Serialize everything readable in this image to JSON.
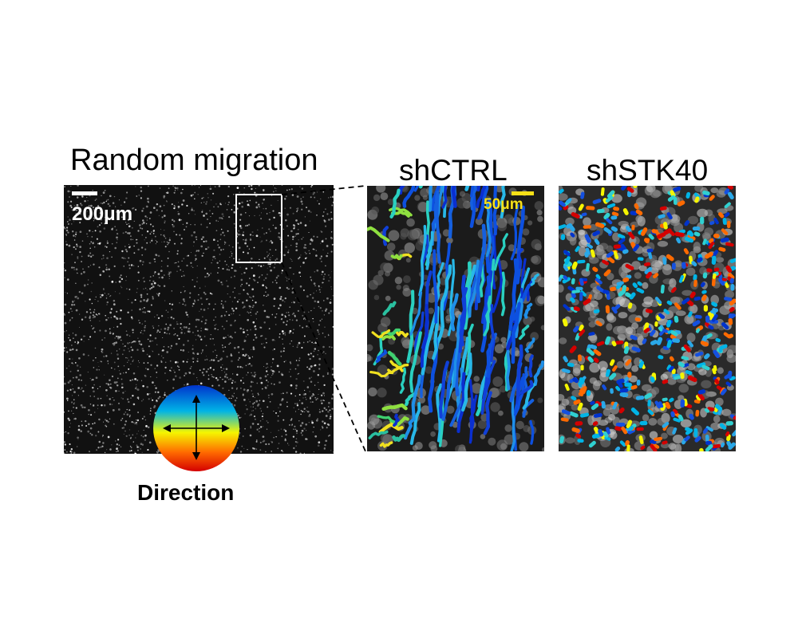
{
  "overview_panel": {
    "title": "Random migration",
    "scale_bar_label": "200μm"
  },
  "direction_legend": {
    "label": "Direction",
    "colors": [
      "#0033cc",
      "#00b4e6",
      "#f5f500",
      "#ff6a00",
      "#d40000"
    ]
  },
  "panels": [
    {
      "title": "shCTRL",
      "scale_bar_label": "50μm",
      "scale_bar_color": "#f7e017"
    },
    {
      "title": "shSTK40"
    }
  ]
}
